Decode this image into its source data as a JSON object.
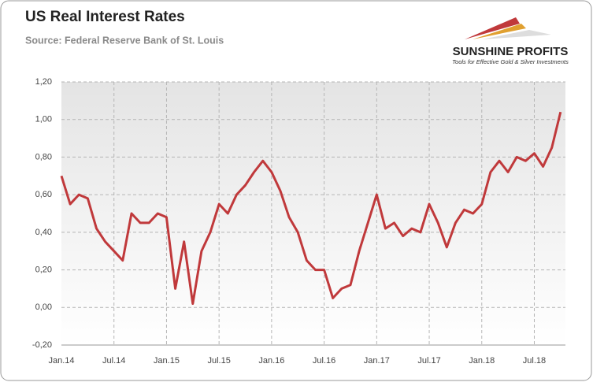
{
  "chart_data": {
    "type": "line",
    "title": "US Real Interest Rates",
    "subtitle": "Source: Federal Reserve Bank of St. Louis",
    "logo": {
      "name": "SUNSHINE PROFITS",
      "tagline": "Tools for Effective Gold & Silver Investments"
    },
    "categories": [
      "Jan.14",
      null,
      null,
      null,
      null,
      null,
      "Jul.14",
      null,
      null,
      null,
      null,
      null,
      "Jan.15",
      null,
      null,
      null,
      null,
      null,
      "Jul.15",
      null,
      null,
      null,
      null,
      null,
      "Jan.16",
      null,
      null,
      null,
      null,
      null,
      "Jul.16",
      null,
      null,
      null,
      null,
      null,
      "Jan.17",
      null,
      null,
      null,
      null,
      null,
      "Jul.17",
      null,
      null,
      null,
      null,
      null,
      "Jan.18",
      null,
      null,
      null,
      null,
      null,
      "Jul.18",
      null,
      null,
      null
    ],
    "series": [
      {
        "color": "#c0393b",
        "values": [
          0.7,
          0.55,
          0.6,
          0.58,
          0.42,
          0.35,
          0.3,
          0.25,
          0.5,
          0.45,
          0.45,
          0.5,
          0.48,
          0.1,
          0.35,
          0.02,
          0.3,
          0.4,
          0.55,
          0.5,
          0.6,
          0.65,
          0.72,
          0.78,
          0.72,
          0.62,
          0.48,
          0.4,
          0.25,
          0.2,
          0.2,
          0.05,
          0.1,
          0.12,
          0.3,
          0.45,
          0.6,
          0.42,
          0.45,
          0.38,
          0.42,
          0.4,
          0.55,
          0.45,
          0.32,
          0.45,
          0.52,
          0.5,
          0.55,
          0.72,
          0.78,
          0.72,
          0.8,
          0.78,
          0.82,
          0.75,
          0.85,
          1.04
        ]
      }
    ],
    "ylim": [
      -0.2,
      1.2
    ],
    "yticks": [
      {
        "value": -0.2,
        "label": "-0,20"
      },
      {
        "value": 0,
        "label": "0,00"
      },
      {
        "value": 0.2,
        "label": "0,20"
      },
      {
        "value": 0.4,
        "label": "0,40"
      },
      {
        "value": 0.6,
        "label": "0,60"
      },
      {
        "value": 0.8,
        "label": "0,80"
      },
      {
        "value": 1.0,
        "label": "1,00"
      },
      {
        "value": 1.2,
        "label": "1,20"
      }
    ],
    "grid": true
  }
}
